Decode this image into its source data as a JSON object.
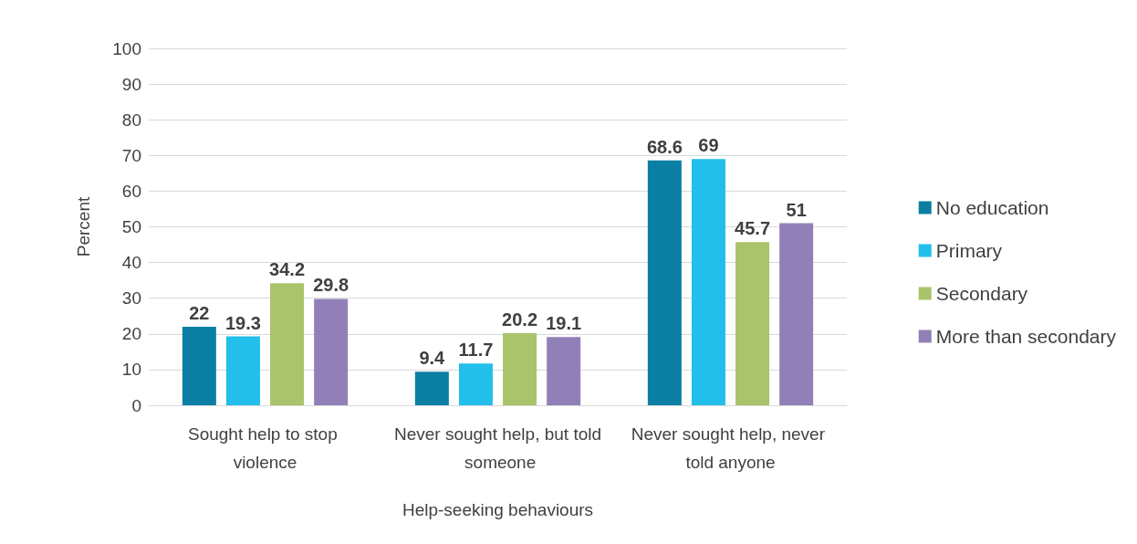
{
  "chart_data": {
    "type": "bar",
    "xlabel": "Help-seeking behaviours",
    "ylabel": "Percent",
    "categories": [
      "Sought help to stop violence",
      "Never sought help, but told someone",
      "Never sought help, never told anyone"
    ],
    "series": [
      {
        "name": "No education",
        "color": "#0a7fa3",
        "values": [
          22,
          9.4,
          68.6
        ]
      },
      {
        "name": "Primary",
        "color": "#22bfea",
        "values": [
          19.3,
          11.7,
          69
        ]
      },
      {
        "name": "Secondary",
        "color": "#a9c46a",
        "values": [
          34.2,
          20.2,
          45.7
        ]
      },
      {
        "name": "More than secondary",
        "color": "#9180b7",
        "values": [
          29.8,
          19.1,
          51
        ]
      }
    ],
    "ylim": [
      0,
      100
    ],
    "yticks": [
      0,
      10,
      20,
      30,
      40,
      50,
      60,
      70,
      80,
      90,
      100
    ],
    "grid": "y",
    "legend": "right",
    "data_labels": true
  }
}
